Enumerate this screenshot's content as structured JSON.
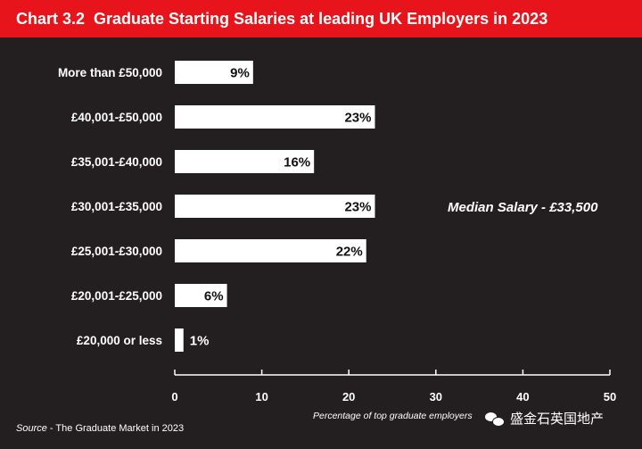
{
  "header": {
    "chart_number": "Chart 3.2",
    "title": "Graduate Starting Salaries at leading UK Employers in 2023"
  },
  "colors": {
    "background": "#231f20",
    "header_bar": "#e8141c",
    "bars": "#ffffff",
    "text": "#ffffff"
  },
  "chart_data": {
    "type": "bar",
    "orientation": "horizontal",
    "title": "Graduate Starting Salaries at leading UK Employers in 2023",
    "xlabel": "Percentage of top graduate employers",
    "ylabel": "",
    "categories": [
      "More than £50,000",
      "£40,001-£50,000",
      "£35,001-£40,000",
      "£30,001-£35,000",
      "£25,001-£30,000",
      "£20,001-£25,000",
      "£20,000 or less"
    ],
    "values": [
      9,
      23,
      16,
      23,
      22,
      6,
      1
    ],
    "value_labels": [
      "9%",
      "23%",
      "16%",
      "23%",
      "22%",
      "6%",
      "1%"
    ],
    "xlim": [
      0,
      50
    ],
    "xticks": [
      0,
      10,
      20,
      30,
      40,
      50
    ],
    "grid": false,
    "annotation": "Median Salary - £33,500"
  },
  "footer": {
    "source_prefix": "Source",
    "source_text": " - The Graduate Market in 2023",
    "watermark": "盛金石英国地产"
  }
}
